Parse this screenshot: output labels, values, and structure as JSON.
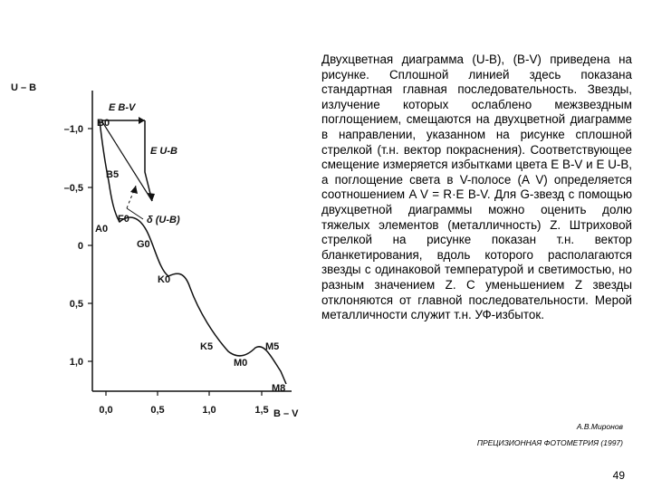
{
  "figure": {
    "y_axis_label": "U – B",
    "x_axis_label": "B – V",
    "y_ticks": [
      "–1,0",
      "–0,5",
      "0",
      "0,5",
      "1,0"
    ],
    "x_ticks": [
      "0,0",
      "0,5",
      "1,0",
      "1,5"
    ],
    "spectral_labels": [
      "B0",
      "B5",
      "A0",
      "F0",
      "G0",
      "K0",
      "K5",
      "M0",
      "M5",
      "M8"
    ],
    "excess_bv": "E B-V",
    "excess_ub": "E U-B",
    "delta_label": "δ (U-B)"
  },
  "text": "Двухцветная диаграмма (U-B), (B-V) приведена на рисунке. Сплошной линией здесь показана стандартная главная последовательность. Звезды, излучение которых ослаблено межзвездным поглощением, смещаются на двухцветной диаграмме в направлении, указанном на рисунке сплошной стрелкой (т.н. вектор покраснения). Соответствующее смещение измеряется избытками цвета E B-V и E U-B, а поглощение света в V-полосе (A V) определяется соотношением A V = R·E B-V. Для G-звезд с помощью двухцветной диаграммы можно оценить долю тяжелых элементов (металличность) Z. Штриховой стрелкой на рисунке показан т.н. вектор бланкетирования, вдоль которого располагаются звезды с одинаковой температурой и светимостью, но разным значением Z. С уменьшением Z звезды отклоняются от главной последовательности. Мерой металличности служит т.н. УФ-избыток.",
  "citation": {
    "author": "А.В.Миронов",
    "source": "ПРЕЦИЗИОННАЯ ФОТОМЕТРИЯ (1997)"
  },
  "page_number": "49"
}
